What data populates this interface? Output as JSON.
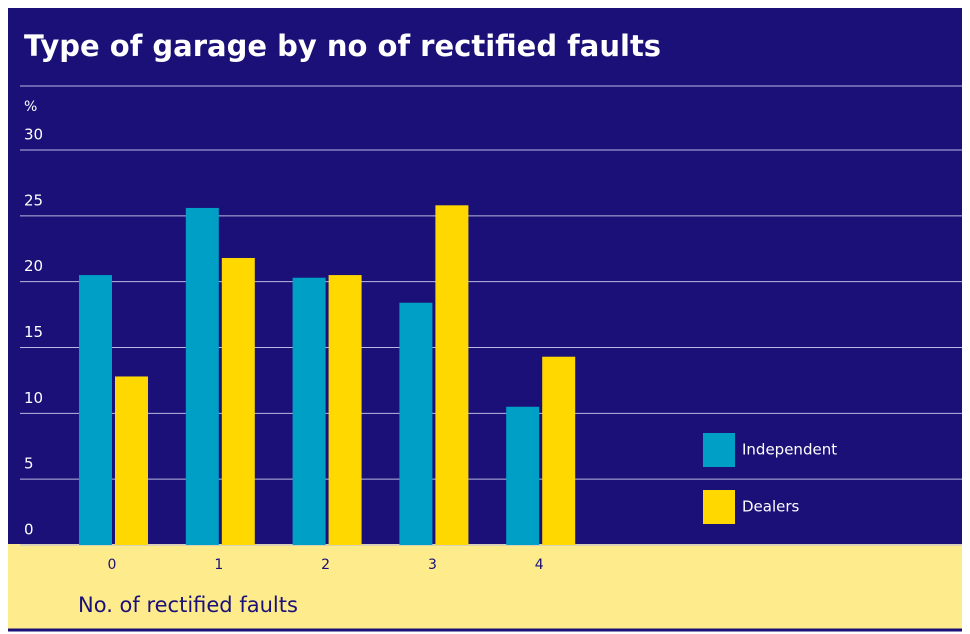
{
  "chart_data": {
    "type": "bar",
    "title": "Type of garage by no of rectified faults",
    "y_label": "%",
    "x_label": "No. of rectified faults",
    "categories": [
      "0",
      "1",
      "2",
      "3",
      "4"
    ],
    "series": [
      {
        "name": "Independent",
        "color": "#00a0c6",
        "values": [
          20.5,
          25.6,
          20.3,
          18.4,
          10.5
        ]
      },
      {
        "name": "Dealers",
        "color": "#ffd800",
        "values": [
          12.8,
          21.8,
          20.5,
          25.8,
          14.3
        ]
      }
    ],
    "ylim": [
      0,
      30
    ],
    "yticks": [
      0,
      5,
      10,
      15,
      20,
      25,
      30
    ],
    "grid": true
  }
}
